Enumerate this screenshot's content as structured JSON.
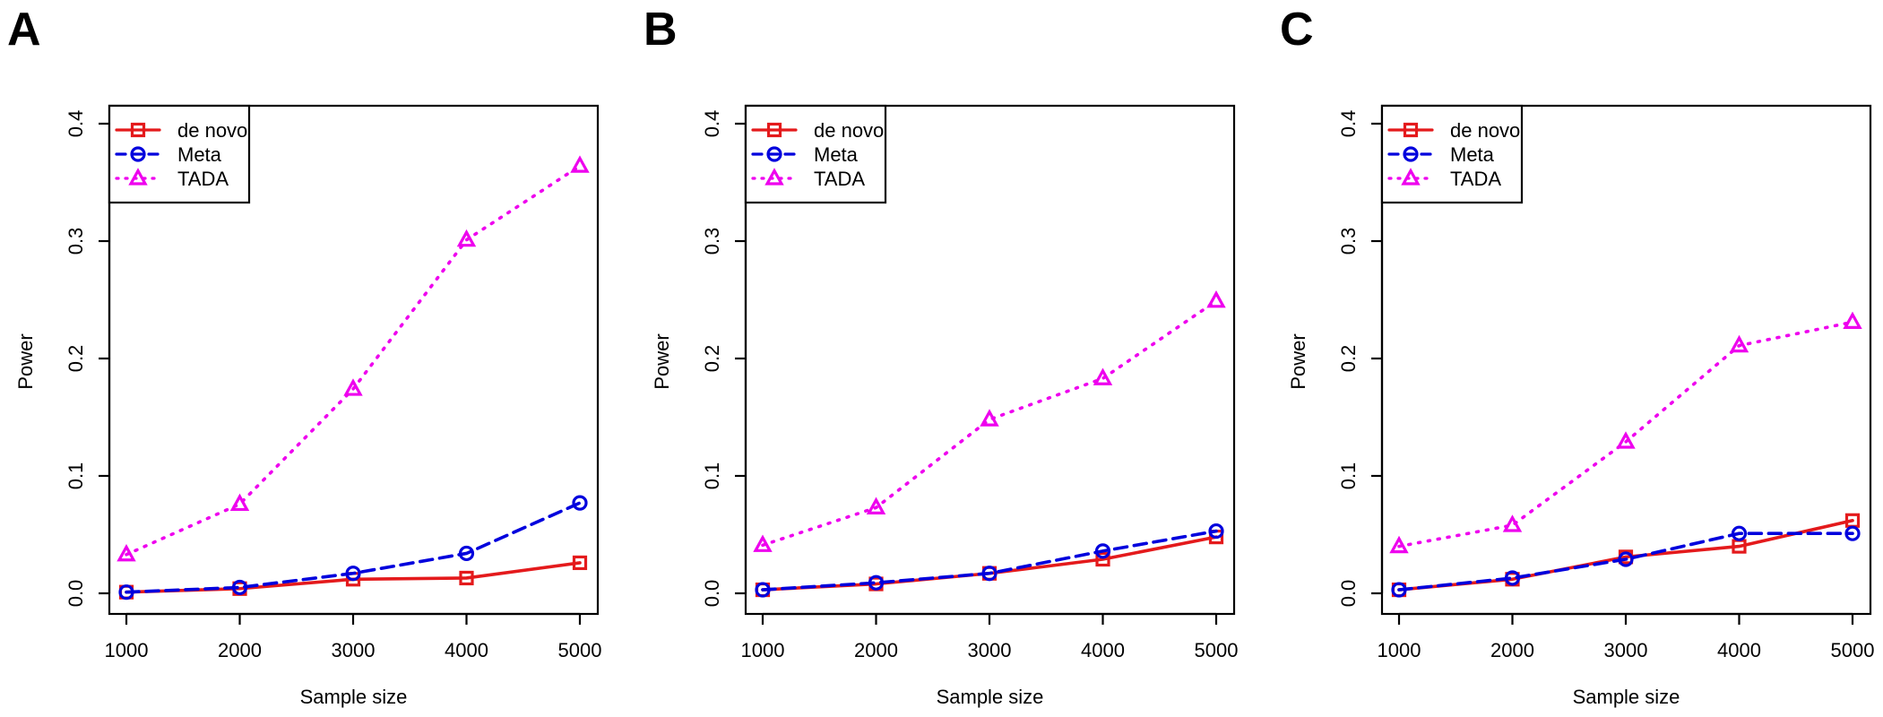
{
  "colors": {
    "de_novo": "#e41a1c",
    "meta": "#0000dd",
    "tada": "#ee00ee",
    "axis": "#000000"
  },
  "chart_data": [
    {
      "panel": "A",
      "type": "line",
      "xlabel": "Sample size",
      "ylabel": "Power",
      "x": [
        1000,
        2000,
        3000,
        4000,
        5000
      ],
      "xticks": [
        "1000",
        "2000",
        "3000",
        "4000",
        "5000"
      ],
      "ylim": [
        0,
        0.4
      ],
      "yticks": [
        "0.0",
        "0.1",
        "0.2",
        "0.3",
        "0.4"
      ],
      "legend_position": "top-left",
      "series": [
        {
          "name": "de novo",
          "key": "de_novo",
          "marker": "square",
          "dash": "solid",
          "values": [
            0.001,
            0.004,
            0.012,
            0.013,
            0.026
          ]
        },
        {
          "name": "Meta",
          "key": "meta",
          "marker": "circle",
          "dash": "dashed",
          "values": [
            0.001,
            0.005,
            0.017,
            0.034,
            0.077
          ]
        },
        {
          "name": "TADA",
          "key": "tada",
          "marker": "triangle",
          "dash": "dotted",
          "values": [
            0.033,
            0.076,
            0.174,
            0.301,
            0.364
          ]
        }
      ]
    },
    {
      "panel": "B",
      "type": "line",
      "xlabel": "Sample size",
      "ylabel": "Power",
      "x": [
        1000,
        2000,
        3000,
        4000,
        5000
      ],
      "xticks": [
        "1000",
        "2000",
        "3000",
        "4000",
        "5000"
      ],
      "ylim": [
        0,
        0.4
      ],
      "yticks": [
        "0.0",
        "0.1",
        "0.2",
        "0.3",
        "0.4"
      ],
      "legend_position": "top-left",
      "series": [
        {
          "name": "de novo",
          "key": "de_novo",
          "marker": "square",
          "dash": "solid",
          "values": [
            0.003,
            0.008,
            0.017,
            0.029,
            0.048
          ]
        },
        {
          "name": "Meta",
          "key": "meta",
          "marker": "circle",
          "dash": "dashed",
          "values": [
            0.003,
            0.009,
            0.017,
            0.036,
            0.053
          ]
        },
        {
          "name": "TADA",
          "key": "tada",
          "marker": "triangle",
          "dash": "dotted",
          "values": [
            0.041,
            0.073,
            0.148,
            0.183,
            0.249
          ]
        }
      ]
    },
    {
      "panel": "C",
      "type": "line",
      "xlabel": "Sample size",
      "ylabel": "Power",
      "x": [
        1000,
        2000,
        3000,
        4000,
        5000
      ],
      "xticks": [
        "1000",
        "2000",
        "3000",
        "4000",
        "5000"
      ],
      "ylim": [
        0,
        0.4
      ],
      "yticks": [
        "0.0",
        "0.1",
        "0.2",
        "0.3",
        "0.4"
      ],
      "legend_position": "top-left",
      "series": [
        {
          "name": "de novo",
          "key": "de_novo",
          "marker": "square",
          "dash": "solid",
          "values": [
            0.003,
            0.012,
            0.031,
            0.04,
            0.062
          ]
        },
        {
          "name": "Meta",
          "key": "meta",
          "marker": "circle",
          "dash": "dashed",
          "values": [
            0.003,
            0.013,
            0.029,
            0.051,
            0.051
          ]
        },
        {
          "name": "TADA",
          "key": "tada",
          "marker": "triangle",
          "dash": "dotted",
          "values": [
            0.04,
            0.058,
            0.129,
            0.211,
            0.231
          ]
        }
      ]
    }
  ]
}
